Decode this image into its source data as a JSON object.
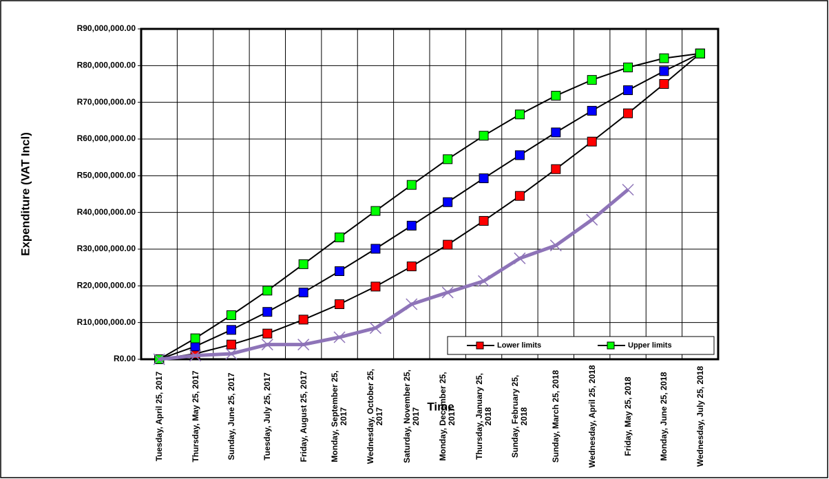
{
  "chart_data": {
    "type": "line",
    "x_label": "Time",
    "y_label": "Expenditure (VAT Incl)",
    "categories": [
      "Tuesday, April 25, 2017",
      "Thursday, May 25, 2017",
      "Sunday, June 25, 2017",
      "Tuesday, July 25, 2017",
      "Friday, August 25, 2017",
      "Monday, September 25, 2017",
      "Wednesday, October 25, 2017",
      "Saturday, November 25, 2017",
      "Monday, December 25, 2017",
      "Thursday, January 25, 2018",
      "Sunday, February 25, 2018",
      "Sunday, March 25, 2018",
      "Wednesday, April 25, 2018",
      "Friday, May 25, 2018",
      "Monday, June 25, 2018",
      "Wednesday, July 25, 2018"
    ],
    "series": [
      {
        "name": "Lower limits",
        "color": "#ff0000",
        "values": [
          0,
          1500000,
          4000000,
          7000000,
          10800000,
          15000000,
          19800000,
          25300000,
          31200000,
          37700000,
          44500000,
          51800000,
          59300000,
          67000000,
          75000000,
          83300000
        ]
      },
      {
        "color": "#0000ff",
        "values": [
          0,
          3500000,
          8000000,
          12900000,
          18200000,
          24000000,
          30100000,
          36400000,
          42800000,
          49300000,
          55600000,
          61800000,
          67700000,
          73300000,
          78500000,
          83300000
        ]
      },
      {
        "name": "Upper limits",
        "color": "#00ff00",
        "values": [
          0,
          5700000,
          12000000,
          18700000,
          25900000,
          33200000,
          40400000,
          47500000,
          54500000,
          60900000,
          66700000,
          71800000,
          76100000,
          79500000,
          82000000,
          83300000
        ]
      },
      {
        "color": "#8e74b8",
        "values": [
          0,
          1000000,
          1500000,
          4000000,
          4000000,
          6000000,
          8500000,
          15000000,
          18200000,
          21300000,
          27500000,
          31000000,
          38000000,
          46200000,
          null,
          null
        ]
      }
    ],
    "ylim": [
      0,
      90000000
    ],
    "yticks": [
      {
        "value": 0,
        "label": "R0.00"
      },
      {
        "value": 10000000,
        "label": "R10,000,000.00"
      },
      {
        "value": 20000000,
        "label": "R20,000,000.00"
      },
      {
        "value": 30000000,
        "label": "R30,000,000.00"
      },
      {
        "value": 40000000,
        "label": "R40,000,000.00"
      },
      {
        "value": 50000000,
        "label": "R50,000,000.00"
      },
      {
        "value": 60000000,
        "label": "R60,000,000.00"
      },
      {
        "value": 70000000,
        "label": "R70,000,000.00"
      },
      {
        "value": 80000000,
        "label": "R80,000,000.00"
      },
      {
        "value": 90000000,
        "label": "R90,000,000.00"
      }
    ],
    "grid": true
  }
}
